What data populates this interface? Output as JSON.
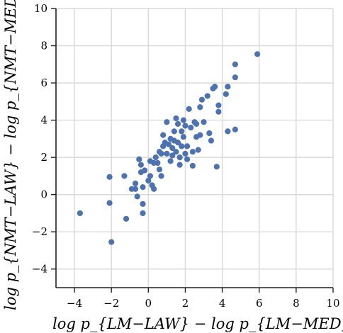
{
  "chart_data": {
    "type": "scatter",
    "xlabel": "log p_{LM−LAW} − log p_{LM−MED}",
    "ylabel": "log p_{NMT−LAW} − log p_{NMT−MED}",
    "xlim": [
      -5,
      10
    ],
    "ylim": [
      -5,
      10
    ],
    "xticks": [
      -4,
      -2,
      0,
      2,
      4,
      6,
      8,
      10
    ],
    "yticks": [
      -4,
      -2,
      0,
      2,
      4,
      6,
      8,
      10
    ],
    "xtick_labels": [
      "−4",
      "−2",
      "0",
      "2",
      "4",
      "6",
      "8",
      "10"
    ],
    "ytick_labels": [
      "−4",
      "−2",
      "0",
      "2",
      "4",
      "6",
      "8",
      "10"
    ],
    "grid": true,
    "point_color": "#4c72b0",
    "series": [
      {
        "points": [
          [
            -3.7,
            -1.0
          ],
          [
            -2.1,
            0.95
          ],
          [
            -2.1,
            -0.45
          ],
          [
            -2.0,
            -2.55
          ],
          [
            -1.3,
            1.0
          ],
          [
            -1.2,
            -1.3
          ],
          [
            -0.9,
            0.3
          ],
          [
            -0.7,
            0.6
          ],
          [
            -0.7,
            0.3
          ],
          [
            -0.6,
            -0.1
          ],
          [
            -0.5,
            1.9
          ],
          [
            -0.4,
            1.6
          ],
          [
            -0.4,
            1.2
          ],
          [
            -0.3,
            0.4
          ],
          [
            -0.3,
            -0.5
          ],
          [
            -0.3,
            -1.0
          ],
          [
            -0.2,
            1.3
          ],
          [
            0.0,
            0.75
          ],
          [
            0.1,
            1.8
          ],
          [
            0.1,
            1.0
          ],
          [
            0.2,
            0.5
          ],
          [
            0.3,
            1.7
          ],
          [
            0.3,
            0.3
          ],
          [
            0.4,
            2.0
          ],
          [
            0.5,
            1.7
          ],
          [
            0.6,
            2.3
          ],
          [
            0.6,
            1.35
          ],
          [
            0.7,
            1.0
          ],
          [
            0.7,
            2.2
          ],
          [
            0.8,
            2.6
          ],
          [
            0.8,
            3.2
          ],
          [
            0.9,
            2.8
          ],
          [
            1.0,
            2.2
          ],
          [
            1.0,
            3.9
          ],
          [
            1.1,
            2.7
          ],
          [
            1.2,
            1.8
          ],
          [
            1.2,
            3.0
          ],
          [
            1.3,
            2.5
          ],
          [
            1.3,
            2.1
          ],
          [
            1.4,
            3.4
          ],
          [
            1.4,
            2.9
          ],
          [
            1.5,
            4.1
          ],
          [
            1.5,
            2.3
          ],
          [
            1.6,
            3.8
          ],
          [
            1.6,
            2.8
          ],
          [
            1.7,
            1.6
          ],
          [
            1.7,
            2.0
          ],
          [
            1.8,
            3.4
          ],
          [
            1.8,
            2.6
          ],
          [
            1.9,
            4.0
          ],
          [
            1.9,
            3.1
          ],
          [
            2.0,
            2.2
          ],
          [
            2.0,
            3.7
          ],
          [
            2.1,
            2.6
          ],
          [
            2.1,
            1.9
          ],
          [
            2.2,
            4.6
          ],
          [
            2.3,
            3.6
          ],
          [
            2.4,
            2.3
          ],
          [
            2.4,
            1.55
          ],
          [
            2.5,
            3.9
          ],
          [
            2.6,
            3.1
          ],
          [
            2.6,
            3.8
          ],
          [
            2.7,
            2.4
          ],
          [
            2.8,
            4.7
          ],
          [
            2.8,
            3.2
          ],
          [
            2.9,
            5.1
          ],
          [
            3.0,
            3.9
          ],
          [
            3.2,
            5.3
          ],
          [
            3.3,
            3.3
          ],
          [
            3.4,
            2.9
          ],
          [
            3.5,
            5.7
          ],
          [
            3.6,
            5.8
          ],
          [
            3.7,
            1.5
          ],
          [
            3.8,
            4.8
          ],
          [
            3.8,
            4.45
          ],
          [
            4.2,
            5.4
          ],
          [
            4.3,
            5.8
          ],
          [
            4.3,
            3.4
          ],
          [
            4.7,
            6.3
          ],
          [
            4.7,
            3.5
          ],
          [
            4.7,
            7.0
          ],
          [
            5.9,
            7.55
          ]
        ]
      }
    ]
  }
}
